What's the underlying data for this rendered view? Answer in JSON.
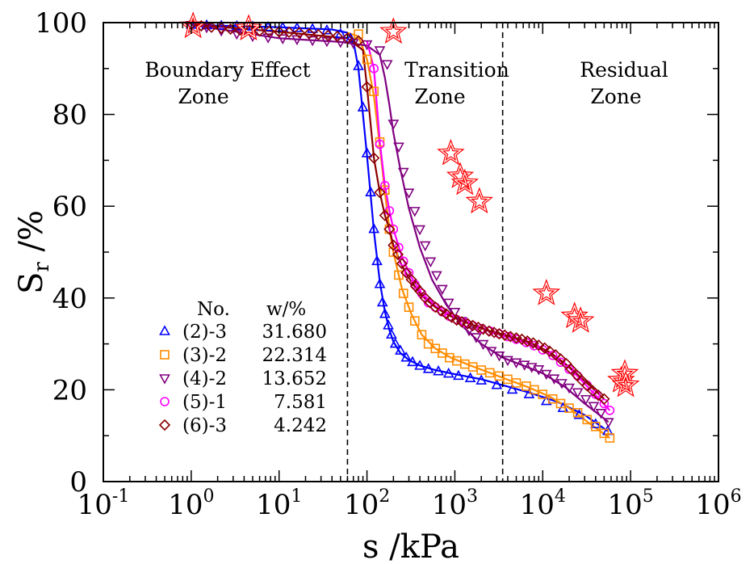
{
  "chart_data": {
    "type": "scatter",
    "title": "",
    "xlabel": "s /kPa",
    "ylabel": "S",
    "ylabel_subscript": "r",
    "ylabel_unit": " /%",
    "xscale": "log",
    "xlim": [
      0.1,
      1000000
    ],
    "ylim": [
      0,
      100
    ],
    "x_ticks": [
      {
        "base": "10",
        "exp": "-1",
        "value": 0.1
      },
      {
        "base": "10",
        "exp": "0",
        "value": 1
      },
      {
        "base": "10",
        "exp": "1",
        "value": 10
      },
      {
        "base": "10",
        "exp": "2",
        "value": 100
      },
      {
        "base": "10",
        "exp": "3",
        "value": 1000
      },
      {
        "base": "10",
        "exp": "4",
        "value": 10000
      },
      {
        "base": "10",
        "exp": "5",
        "value": 100000
      },
      {
        "base": "10",
        "exp": "6",
        "value": 1000000
      }
    ],
    "y_ticks": [
      "0",
      "20",
      "40",
      "60",
      "80",
      "100"
    ],
    "grid": false,
    "zone_boundaries": [
      60,
      3500
    ],
    "zones": [
      {
        "line1": "Boundary Effect",
        "line2": "Zone"
      },
      {
        "line1": "Transition",
        "line2": "Zone"
      },
      {
        "line1": "Residual",
        "line2": "Zone"
      }
    ],
    "legend": {
      "placement": "lower-left",
      "header_no": "No.",
      "header_w": "w/%"
    },
    "series": [
      {
        "name": "(2)-3",
        "w": "31.680",
        "marker": "triangle-up",
        "color": "#0000ff",
        "x": [
          1,
          1.5,
          2.2,
          3.3,
          5,
          7.5,
          11,
          16,
          24,
          35,
          50,
          65,
          80,
          90,
          100,
          110,
          120,
          130,
          140,
          150,
          160,
          175,
          190,
          210,
          240,
          280,
          330,
          400,
          500,
          650,
          850,
          1100,
          1500,
          2000,
          3000,
          4500,
          7000,
          11000,
          17000,
          26000,
          40000,
          55000
        ],
        "y": [
          99.5,
          99.4,
          99.3,
          99.2,
          99.1,
          99.0,
          98.9,
          98.8,
          98.6,
          98.3,
          97.5,
          96.5,
          90.5,
          81.5,
          71.5,
          63,
          55,
          48,
          43,
          39,
          36.5,
          34,
          32,
          30,
          28.5,
          27,
          26,
          25.2,
          24.5,
          24,
          23.5,
          23,
          22.5,
          22,
          21,
          20,
          19,
          17.5,
          16,
          14.5,
          12.5,
          11
        ]
      },
      {
        "name": "(3)-2",
        "w": "22.314",
        "marker": "square",
        "color": "#ff8c00",
        "x": [
          80,
          100,
          120,
          140,
          160,
          180,
          200,
          230,
          260,
          300,
          350,
          420,
          500,
          600,
          720,
          870,
          1050,
          1300,
          1600,
          2000,
          2500,
          3200,
          4000,
          5000,
          6500,
          8000,
          10000,
          13000,
          16000,
          20000,
          25000,
          32000,
          40000,
          50000,
          58000
        ],
        "y": [
          97.5,
          92,
          85,
          74,
          63.5,
          55,
          50,
          45,
          41,
          38,
          35,
          32,
          30,
          29,
          28,
          27,
          26.3,
          25.6,
          25,
          24.3,
          23.7,
          23,
          22.3,
          21.5,
          20.8,
          20,
          19,
          18,
          17,
          16,
          15,
          13.5,
          12,
          10.5,
          9.5
        ]
      },
      {
        "name": "(4)-2",
        "w": "13.652",
        "marker": "triangle-down",
        "color": "#800080",
        "x": [
          1,
          1.5,
          2.2,
          3.3,
          5,
          7.5,
          11,
          16,
          24,
          35,
          50,
          70,
          100,
          140,
          170,
          200,
          230,
          260,
          300,
          350,
          400,
          460,
          530,
          620,
          720,
          850,
          1000,
          1200,
          1450,
          1750,
          2100,
          2600,
          3200,
          4000,
          5000,
          6200,
          7500,
          9000,
          11000,
          13500,
          16500,
          20000,
          25000,
          31000,
          38000,
          46000,
          56000
        ],
        "y": [
          99.5,
          99,
          98.3,
          97.6,
          97.1,
          96.8,
          96.6,
          96.4,
          96.2,
          96.0,
          95.8,
          95.6,
          95.3,
          94,
          91,
          78,
          73,
          67.5,
          63,
          59,
          55,
          51.5,
          48,
          45,
          42,
          39,
          37,
          35,
          33,
          31.5,
          30,
          28.5,
          27.5,
          26.5,
          26,
          25.5,
          25,
          24.5,
          23.5,
          22.5,
          21.5,
          20.5,
          19.5,
          18,
          16.5,
          15,
          13
        ]
      },
      {
        "name": "(5)-1",
        "w": "7.581",
        "marker": "circle",
        "color": "#ff00ff",
        "x": [
          120,
          140,
          160,
          180,
          200,
          230,
          260,
          300,
          350,
          420,
          500,
          600,
          720,
          870,
          1050,
          1300,
          1600,
          2000,
          2500,
          3200,
          4000,
          5000,
          6500,
          8000,
          10000,
          13000,
          16000,
          20000,
          25000,
          32000,
          40000,
          50000,
          58000
        ],
        "y": [
          90,
          73.5,
          64.5,
          59,
          55,
          51,
          48,
          45.5,
          43,
          41,
          39,
          38,
          37,
          36,
          35.3,
          34.6,
          34,
          33.3,
          32.8,
          32.2,
          31.6,
          31,
          30.3,
          29.6,
          28.7,
          27.5,
          26,
          24.5,
          23,
          21,
          19,
          17,
          15.5
        ]
      },
      {
        "name": "(6)-3",
        "w": "4.242",
        "marker": "diamond",
        "color": "#8b0000",
        "x": [
          1,
          1.3,
          1.7,
          2.2,
          2.8,
          3.6,
          4.6,
          6,
          7.7,
          10,
          13,
          17,
          22,
          28,
          36,
          46,
          60,
          80,
          100,
          120,
          140,
          160,
          180,
          200,
          225,
          250,
          280,
          320,
          360,
          400,
          460,
          520,
          600,
          700,
          800,
          920,
          1050,
          1200,
          1400,
          1600,
          1850,
          2100,
          2450,
          2800,
          3200,
          3700,
          4300,
          5000,
          5800,
          6700,
          7800,
          9000,
          10500,
          12000,
          14000,
          16000,
          18500,
          21000,
          24500,
          28000,
          32000,
          37000,
          43000,
          50000
        ],
        "y": [
          99.6,
          99.3,
          99.0,
          98.8,
          98.6,
          98.4,
          98.3,
          98.2,
          98.1,
          98.0,
          97.9,
          97.8,
          97.6,
          97.4,
          97.2,
          97.0,
          96.6,
          96,
          86,
          70.5,
          63,
          58,
          55,
          51.5,
          49.5,
          47.5,
          45.5,
          44,
          42.5,
          41.5,
          40,
          39,
          38,
          37.2,
          36.5,
          35.8,
          35.2,
          34.8,
          34.4,
          34,
          33.6,
          33.2,
          32.8,
          32.5,
          32.2,
          31.9,
          31.6,
          31.3,
          31,
          30.6,
          30.2,
          29.7,
          29.1,
          28.4,
          27.6,
          26.7,
          25.7,
          24.5,
          23.2,
          22,
          20.9,
          19.8,
          18.8,
          18
        ]
      },
      {
        "name": "",
        "w": "",
        "marker": "star",
        "color": "#ff0000",
        "x": [
          1.05,
          4.5,
          200,
          900,
          1150,
          1300,
          1900,
          11000,
          23000,
          27000,
          78000,
          86000,
          88000
        ],
        "y": [
          99.2,
          98.7,
          98.0,
          71.5,
          66.5,
          65,
          61,
          41,
          36,
          35,
          22,
          23.5,
          21
        ]
      }
    ],
    "fits": [
      {
        "color": "#0000ff",
        "x": [
          1,
          10,
          40,
          60,
          70,
          80,
          90,
          100,
          110,
          120,
          140,
          160,
          180,
          200,
          240,
          300,
          400,
          600,
          1000,
          2000,
          3500,
          7000,
          15000,
          30000,
          55000
        ],
        "y": [
          99.5,
          99.0,
          98.5,
          97.8,
          96,
          90,
          80,
          71,
          62.5,
          54.5,
          43.5,
          37,
          33,
          30.5,
          28,
          26.5,
          25.3,
          24.3,
          23.4,
          22.3,
          21,
          19.4,
          17.3,
          14.5,
          11
        ]
      },
      {
        "color": "#ff8c00",
        "x": [
          60,
          80,
          100,
          120,
          140,
          160,
          180,
          200,
          250,
          320,
          420,
          600,
          900,
          1500,
          2500,
          4000,
          7000,
          12000,
          20000,
          35000,
          58000
        ],
        "y": [
          97.8,
          97,
          92,
          84,
          73,
          63,
          55,
          50,
          42,
          36.5,
          32,
          29,
          27,
          25.3,
          23.7,
          22.2,
          20.5,
          18.5,
          16,
          12.5,
          9.5
        ]
      },
      {
        "color": "#800080",
        "x": [
          1,
          10,
          50,
          100,
          140,
          160,
          180,
          200,
          240,
          300,
          400,
          550,
          800,
          1200,
          2000,
          3500,
          6000,
          10000,
          18000,
          30000,
          56000
        ],
        "y": [
          99.5,
          96.6,
          95.8,
          95,
          93,
          88,
          82,
          76,
          68,
          59.5,
          51,
          44,
          38.5,
          34,
          30,
          27,
          25.3,
          23.6,
          20.6,
          17,
          13
        ]
      },
      {
        "color": "#ff00ff",
        "x": [
          100,
          120,
          140,
          160,
          180,
          200,
          250,
          320,
          420,
          600,
          900,
          1500,
          2500,
          4000,
          7000,
          12000,
          20000,
          35000,
          58000
        ],
        "y": [
          96,
          90,
          74,
          64.5,
          59,
          55,
          49,
          44.5,
          41,
          38.3,
          36.2,
          34.4,
          32.7,
          31.5,
          30,
          28,
          24.8,
          20,
          15.5
        ]
      },
      {
        "color": "#8b0000",
        "x": [
          1,
          10,
          60,
          90,
          100,
          120,
          140,
          160,
          180,
          200,
          250,
          320,
          420,
          600,
          900,
          1500,
          2500,
          4000,
          7000,
          12000,
          20000,
          35000,
          50000
        ],
        "y": [
          99.6,
          98,
          96.6,
          94,
          86,
          70.5,
          63,
          58,
          55,
          51.5,
          47,
          43.5,
          40.5,
          38,
          36,
          34.3,
          32.8,
          31.8,
          30.4,
          28.2,
          25,
          20.8,
          18
        ]
      }
    ]
  }
}
